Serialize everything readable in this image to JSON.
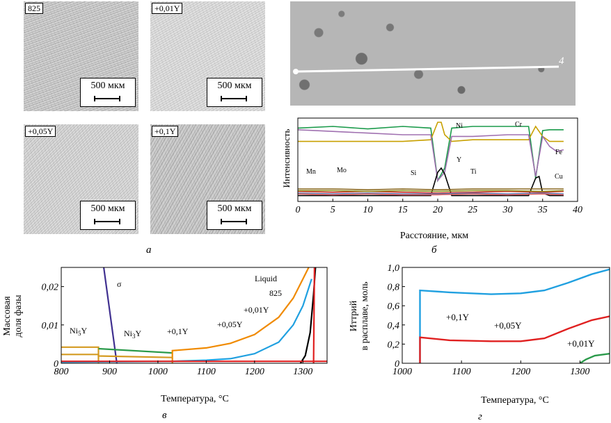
{
  "panel_a": {
    "caption": "а",
    "images": [
      {
        "label": "825",
        "scale": "500 мкм"
      },
      {
        "label": "+0,01Y",
        "scale": "500 мкм"
      },
      {
        "label": "+0,05Y",
        "scale": "500 мкм"
      },
      {
        "label": "+0,1Y",
        "scale": "500 мкм"
      }
    ]
  },
  "panel_b": {
    "caption": "б",
    "sem_marker": "4",
    "chart_data": {
      "type": "line",
      "xlabel": "Расстояние, мкм",
      "ylabel": "Интенсивность",
      "xlim": [
        0,
        40
      ],
      "xticks": [
        0,
        5,
        10,
        15,
        20,
        25,
        30,
        35,
        40
      ],
      "series": [
        {
          "name": "Cr",
          "color": "#1a9a4a",
          "x": [
            0,
            5,
            10,
            15,
            19,
            20,
            21,
            22,
            25,
            30,
            33,
            34,
            35,
            36,
            38
          ],
          "y": [
            0.88,
            0.9,
            0.87,
            0.9,
            0.88,
            0.25,
            0.4,
            0.88,
            0.9,
            0.9,
            0.9,
            0.28,
            0.85,
            0.86,
            0.86
          ]
        },
        {
          "name": "Ni",
          "color": "#c8a000",
          "x": [
            0,
            5,
            10,
            15,
            19,
            20,
            20.5,
            21,
            22,
            25,
            30,
            33,
            34,
            35,
            36,
            38
          ],
          "y": [
            0.72,
            0.72,
            0.72,
            0.72,
            0.74,
            0.95,
            0.95,
            0.8,
            0.72,
            0.74,
            0.74,
            0.74,
            0.9,
            0.78,
            0.72,
            0.72
          ]
        },
        {
          "name": "Fe",
          "color": "#a070b0",
          "x": [
            0,
            5,
            10,
            15,
            19,
            20,
            21,
            22,
            25,
            30,
            33,
            34,
            35,
            36,
            37,
            38
          ],
          "y": [
            0.86,
            0.84,
            0.82,
            0.8,
            0.8,
            0.25,
            0.35,
            0.78,
            0.78,
            0.8,
            0.8,
            0.3,
            0.78,
            0.66,
            0.6,
            0.62
          ]
        },
        {
          "name": "Y",
          "color": "#000000",
          "x": [
            0,
            5,
            10,
            15,
            19,
            20,
            20.5,
            21,
            22,
            25,
            30,
            33,
            34,
            34.5,
            35,
            36,
            38
          ],
          "y": [
            0.07,
            0.07,
            0.07,
            0.07,
            0.07,
            0.35,
            0.4,
            0.33,
            0.07,
            0.07,
            0.07,
            0.07,
            0.28,
            0.3,
            0.1,
            0.07,
            0.07
          ]
        },
        {
          "name": "Mn",
          "color": "#d03030",
          "x": [
            0,
            5,
            10,
            15,
            20,
            25,
            30,
            35,
            38
          ],
          "y": [
            0.12,
            0.11,
            0.12,
            0.11,
            0.1,
            0.11,
            0.12,
            0.11,
            0.12
          ]
        },
        {
          "name": "Mo",
          "color": "#8a6a20",
          "x": [
            0,
            5,
            10,
            15,
            20,
            25,
            30,
            35,
            38
          ],
          "y": [
            0.15,
            0.15,
            0.14,
            0.15,
            0.14,
            0.15,
            0.15,
            0.15,
            0.15
          ]
        },
        {
          "name": "Si",
          "color": "#5080c0",
          "x": [
            0,
            5,
            10,
            15,
            20,
            25,
            30,
            35,
            38
          ],
          "y": [
            0.1,
            0.09,
            0.1,
            0.09,
            0.09,
            0.1,
            0.09,
            0.1,
            0.09
          ]
        },
        {
          "name": "Ti",
          "color": "#909020",
          "x": [
            0,
            5,
            10,
            15,
            20,
            25,
            30,
            35,
            38
          ],
          "y": [
            0.13,
            0.13,
            0.12,
            0.13,
            0.12,
            0.13,
            0.13,
            0.12,
            0.13
          ]
        },
        {
          "name": "Cu",
          "color": "#e06060",
          "x": [
            0,
            5,
            10,
            15,
            20,
            25,
            30,
            35,
            38
          ],
          "y": [
            0.09,
            0.08,
            0.09,
            0.08,
            0.08,
            0.09,
            0.08,
            0.09,
            0.08
          ]
        }
      ],
      "labels": [
        "Ni",
        "Cr",
        "Fe",
        "Y",
        "Mn",
        "Mo",
        "Si",
        "Ti",
        "Cu"
      ]
    }
  },
  "panel_v": {
    "caption": "в",
    "chart_data": {
      "type": "line",
      "xlabel": "Температура, °C",
      "ylabel_line1": "Массовая",
      "ylabel_line2": "доля фазы",
      "xlim": [
        800,
        1350
      ],
      "ylim": [
        0,
        0.025
      ],
      "xticks": [
        800,
        900,
        1000,
        1100,
        1200,
        1300
      ],
      "yticks": [
        "0",
        "0,01",
        "0,02"
      ],
      "series": [
        {
          "name": "σ",
          "color": "#403090",
          "x": [
            888,
            915
          ],
          "y": [
            0.025,
            0
          ]
        },
        {
          "name": "Ni5Y",
          "color": "#d49a20",
          "x": [
            800,
            877,
            877
          ],
          "y": [
            0.0042,
            0.0042,
            0
          ]
        },
        {
          "name": "Ni3Y",
          "color": "#2a9a4a",
          "x": [
            877,
            1030
          ],
          "y": [
            0.0038,
            0.0027
          ]
        },
        {
          "name": "+0,1Y",
          "color": "#f08a00",
          "x": [
            1030,
            1030,
            1100,
            1150,
            1200,
            1250,
            1280,
            1300,
            1312
          ],
          "y": [
            0,
            0.0033,
            0.004,
            0.0052,
            0.0075,
            0.012,
            0.017,
            0.022,
            0.025
          ]
        },
        {
          "name": "+0,05Y",
          "color": "#20a0e0",
          "x": [
            800,
            1030,
            1100,
            1150,
            1200,
            1250,
            1280,
            1300,
            1318
          ],
          "y": [
            0.0003,
            0.0005,
            0.0008,
            0.0012,
            0.0025,
            0.0055,
            0.01,
            0.015,
            0.022
          ]
        },
        {
          "name": "+0,01Y",
          "color": "#000000",
          "x": [
            1295,
            1305,
            1315,
            1322,
            1326
          ],
          "y": [
            0,
            0.002,
            0.008,
            0.018,
            0.025
          ]
        },
        {
          "name": "825",
          "color": "#e02020",
          "x": [
            1322,
            1323,
            1324
          ],
          "y": [
            0,
            0.012,
            0.025
          ]
        },
        {
          "name": "825 base",
          "color": "#e02020",
          "x": [
            800,
            1350
          ],
          "y": [
            0.0005,
            0.0005
          ]
        },
        {
          "name": "Ni5Y thin",
          "color": "#d49a20",
          "x": [
            800,
            877,
            877,
            1030
          ],
          "y": [
            0.0023,
            0.0023,
            0.0019,
            0.0015
          ]
        }
      ],
      "labels": {
        "liquid": "Liquid",
        "l825": "825",
        "l001": "+0,01Y",
        "l005": "+0,05Y",
        "l01": "+0,1Y",
        "sigma": "σ",
        "ni5y_main": "Ni",
        "ni5y_sub": "5",
        "ni5y_end": "Y",
        "ni3y_main": "Ni",
        "ni3y_sub": "3",
        "ni3y_end": "Y"
      }
    }
  },
  "panel_g": {
    "caption": "г",
    "chart_data": {
      "type": "line",
      "xlabel": "Температура, °C",
      "ylabel_line1": "Иттрий",
      "ylabel_line2": "в расплаве, моль",
      "xlim": [
        1000,
        1350
      ],
      "ylim": [
        0,
        1.0
      ],
      "xticks": [
        1000,
        1100,
        1200,
        1300
      ],
      "yticks": [
        "0",
        "0,2",
        "0,4",
        "0,6",
        "0,8",
        "1,0"
      ],
      "series": [
        {
          "name": "+0,1Y",
          "color": "#20a0e0",
          "x": [
            1030,
            1030,
            1080,
            1150,
            1200,
            1240,
            1280,
            1320,
            1350
          ],
          "y": [
            0,
            0.76,
            0.74,
            0.72,
            0.73,
            0.76,
            0.84,
            0.93,
            0.98
          ]
        },
        {
          "name": "+0,05Y",
          "color": "#e02020",
          "x": [
            1030,
            1030,
            1080,
            1150,
            1200,
            1240,
            1280,
            1320,
            1350
          ],
          "y": [
            0,
            0.27,
            0.24,
            0.23,
            0.23,
            0.26,
            0.36,
            0.45,
            0.49
          ]
        },
        {
          "name": "+0,01Y",
          "color": "#2a9a4a",
          "x": [
            1300,
            1310,
            1325,
            1350
          ],
          "y": [
            0,
            0.04,
            0.08,
            0.1
          ]
        }
      ],
      "labels": {
        "l01": "+0,1Y",
        "l005": "+0,05Y",
        "l001": "+0,01Y"
      }
    }
  }
}
